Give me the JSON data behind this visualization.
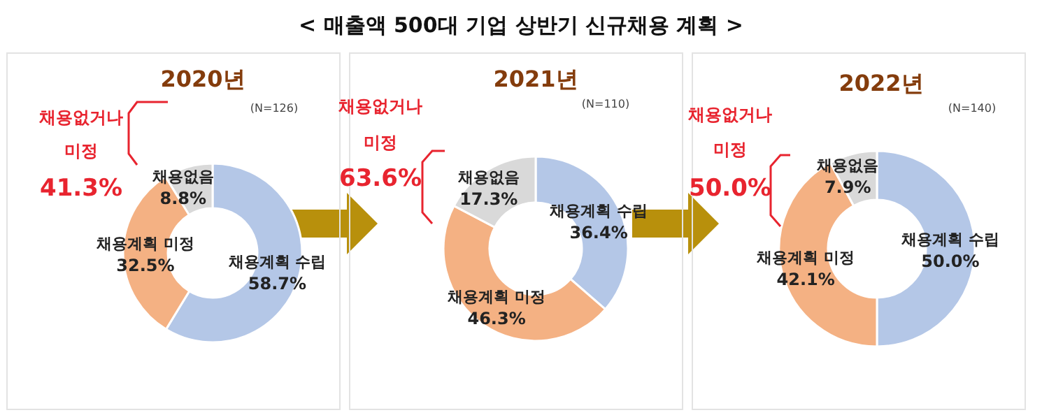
{
  "chart_data": [
    {
      "type": "donut",
      "title": "2020년",
      "categories": [
        "채용계획 수립",
        "채용계획 미정",
        "채용없음"
      ],
      "values": [
        58.7,
        32.5,
        8.8
      ],
      "value_labels": [
        "58.7%",
        "32.5%",
        "8.8%"
      ],
      "colors": [
        "#b4c7e7",
        "#f4b183",
        "#d9d9d9"
      ],
      "annotations": [
        "(N=126)",
        "채용없거나",
        "미정",
        "41.3%"
      ]
    },
    {
      "type": "donut",
      "subtitle": "< 매출액 500대 기업 상반기 신규채용 계획 >",
      "title": "2021년",
      "categories": [
        "채용계획 수립",
        "채용계획 미정",
        "채용없음"
      ],
      "values": [
        36.4,
        46.3,
        17.3
      ],
      "value_labels": [
        "36.4%",
        "46.3%",
        "17.3%"
      ],
      "colors": [
        "#b4c7e7",
        "#f4b183",
        "#d9d9d9"
      ],
      "annotations": [
        "(N=110)",
        "채용없거나",
        "미정",
        "63.6%"
      ]
    },
    {
      "type": "donut",
      "title": "2022년",
      "categories": [
        "채용계획 수립",
        "채용계획 미정",
        "채용없음"
      ],
      "values": [
        50.0,
        42.1,
        7.9
      ],
      "value_labels": [
        "50.0%",
        "42.1%",
        "7.9%"
      ],
      "colors": [
        "#b4c7e7",
        "#f4b183",
        "#d9d9d9"
      ],
      "annotations": [
        "(N=140)",
        "채용없거나",
        "미정",
        "50.0%"
      ]
    }
  ]
}
